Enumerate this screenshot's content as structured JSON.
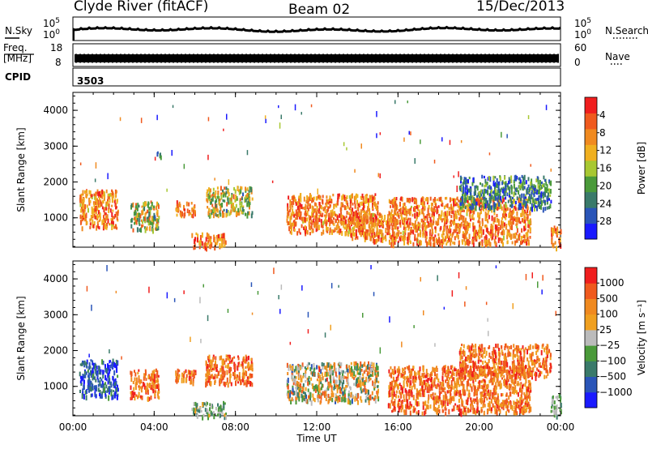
{
  "header": {
    "station": "Clyde River (fitACF)",
    "beam": "Beam 02",
    "date": "15/Dec/2013"
  },
  "noise_panel": {
    "left_label": "N.Sky",
    "right_label": "N.Search",
    "tick_top": "10^5",
    "tick_bottom": "10^0"
  },
  "freq_panel": {
    "left_label_line1": "Freq.",
    "left_label_line2": "[MHz]",
    "right_label": "Nave",
    "left_tick_top": "18",
    "left_tick_bottom": "8",
    "right_tick_top": "60",
    "right_tick_bottom": "0"
  },
  "cpid_panel": {
    "label": "CPID",
    "value": "3503"
  },
  "chart_data": [
    {
      "type": "heatmap",
      "title": "",
      "ylabel": "Slant Range [km]",
      "ylim": [
        180,
        4500
      ],
      "yticks": [
        "1000",
        "2000",
        "3000",
        "4000"
      ],
      "xlim": [
        "00:00",
        "24:00"
      ],
      "xticks": [
        "00:00",
        "04:00",
        "08:00",
        "12:00",
        "16:00",
        "20:00",
        "00:00"
      ],
      "colorbar": {
        "label": "Power [dB]",
        "ticks": [
          "4",
          "8",
          "12",
          "16",
          "20",
          "24",
          "28"
        ],
        "range": [
          0,
          30
        ],
        "colors": [
          "#1a1aff",
          "#2a55b8",
          "#3a7a6a",
          "#4a9a3a",
          "#a8c832",
          "#f0b020",
          "#f08a20",
          "#f05a1e",
          "#f01e1e"
        ]
      },
      "echo_regions": [
        {
          "t_start": 0.3,
          "t_end": 2.2,
          "r_min": 750,
          "r_max": 1800,
          "level": "high"
        },
        {
          "t_start": 2.8,
          "t_end": 4.2,
          "r_min": 700,
          "r_max": 1500,
          "level": "mixed"
        },
        {
          "t_start": 4.0,
          "t_end": 4.3,
          "r_min": 2700,
          "r_max": 2900,
          "level": "low"
        },
        {
          "t_start": 5.0,
          "t_end": 6.0,
          "r_min": 1100,
          "r_max": 1500,
          "level": "high"
        },
        {
          "t_start": 5.8,
          "t_end": 7.5,
          "r_min": 200,
          "r_max": 600,
          "level": "high"
        },
        {
          "t_start": 6.5,
          "t_end": 8.8,
          "r_min": 1100,
          "r_max": 1900,
          "level": "mixed"
        },
        {
          "t_start": 10.5,
          "t_end": 15.0,
          "r_min": 600,
          "r_max": 1700,
          "level": "high"
        },
        {
          "t_start": 13.5,
          "t_end": 16.0,
          "r_min": 400,
          "r_max": 1200,
          "level": "high"
        },
        {
          "t_start": 15.5,
          "t_end": 22.5,
          "r_min": 300,
          "r_max": 1600,
          "level": "high"
        },
        {
          "t_start": 19.0,
          "t_end": 23.5,
          "r_min": 1300,
          "r_max": 2200,
          "level": "low"
        },
        {
          "t_start": 23.5,
          "t_end": 24.0,
          "r_min": 200,
          "r_max": 800,
          "level": "high"
        }
      ]
    },
    {
      "type": "heatmap",
      "title": "",
      "ylabel": "Slant Range [km]",
      "ylim": [
        180,
        4500
      ],
      "yticks": [
        "1000",
        "2000",
        "3000",
        "4000"
      ],
      "xlabel": "Time UT",
      "xlim": [
        "00:00",
        "24:00"
      ],
      "xticks": [
        "00:00",
        "04:00",
        "08:00",
        "12:00",
        "16:00",
        "20:00",
        "00:00"
      ],
      "colorbar": {
        "label": "Velocity [m s⁻¹]",
        "ticks": [
          "1000",
          "500",
          "100",
          "25",
          "−25",
          "−100",
          "−500",
          "−1000"
        ],
        "range": [
          -1200,
          1200
        ],
        "colors": [
          "#1a1aff",
          "#2a55b8",
          "#3a7a6a",
          "#4a9a3a",
          "#bbbbbb",
          "#f0a020",
          "#f08a20",
          "#f05a1e",
          "#f01e1e"
        ]
      },
      "echo_regions": [
        {
          "t_start": 0.3,
          "t_end": 2.2,
          "r_min": 750,
          "r_max": 1800,
          "level": "toward"
        },
        {
          "t_start": 2.8,
          "t_end": 4.2,
          "r_min": 700,
          "r_max": 1500,
          "level": "away"
        },
        {
          "t_start": 5.0,
          "t_end": 6.0,
          "r_min": 1100,
          "r_max": 1500,
          "level": "away"
        },
        {
          "t_start": 5.8,
          "t_end": 7.5,
          "r_min": 200,
          "r_max": 600,
          "level": "slow"
        },
        {
          "t_start": 6.5,
          "t_end": 8.8,
          "r_min": 1100,
          "r_max": 1900,
          "level": "away"
        },
        {
          "t_start": 10.5,
          "t_end": 15.0,
          "r_min": 600,
          "r_max": 1700,
          "level": "mixed"
        },
        {
          "t_start": 15.5,
          "t_end": 22.5,
          "r_min": 300,
          "r_max": 1600,
          "level": "away"
        },
        {
          "t_start": 19.0,
          "t_end": 23.5,
          "r_min": 1300,
          "r_max": 2200,
          "level": "away"
        },
        {
          "t_start": 23.5,
          "t_end": 24.0,
          "r_min": 200,
          "r_max": 800,
          "level": "slow"
        }
      ]
    }
  ]
}
